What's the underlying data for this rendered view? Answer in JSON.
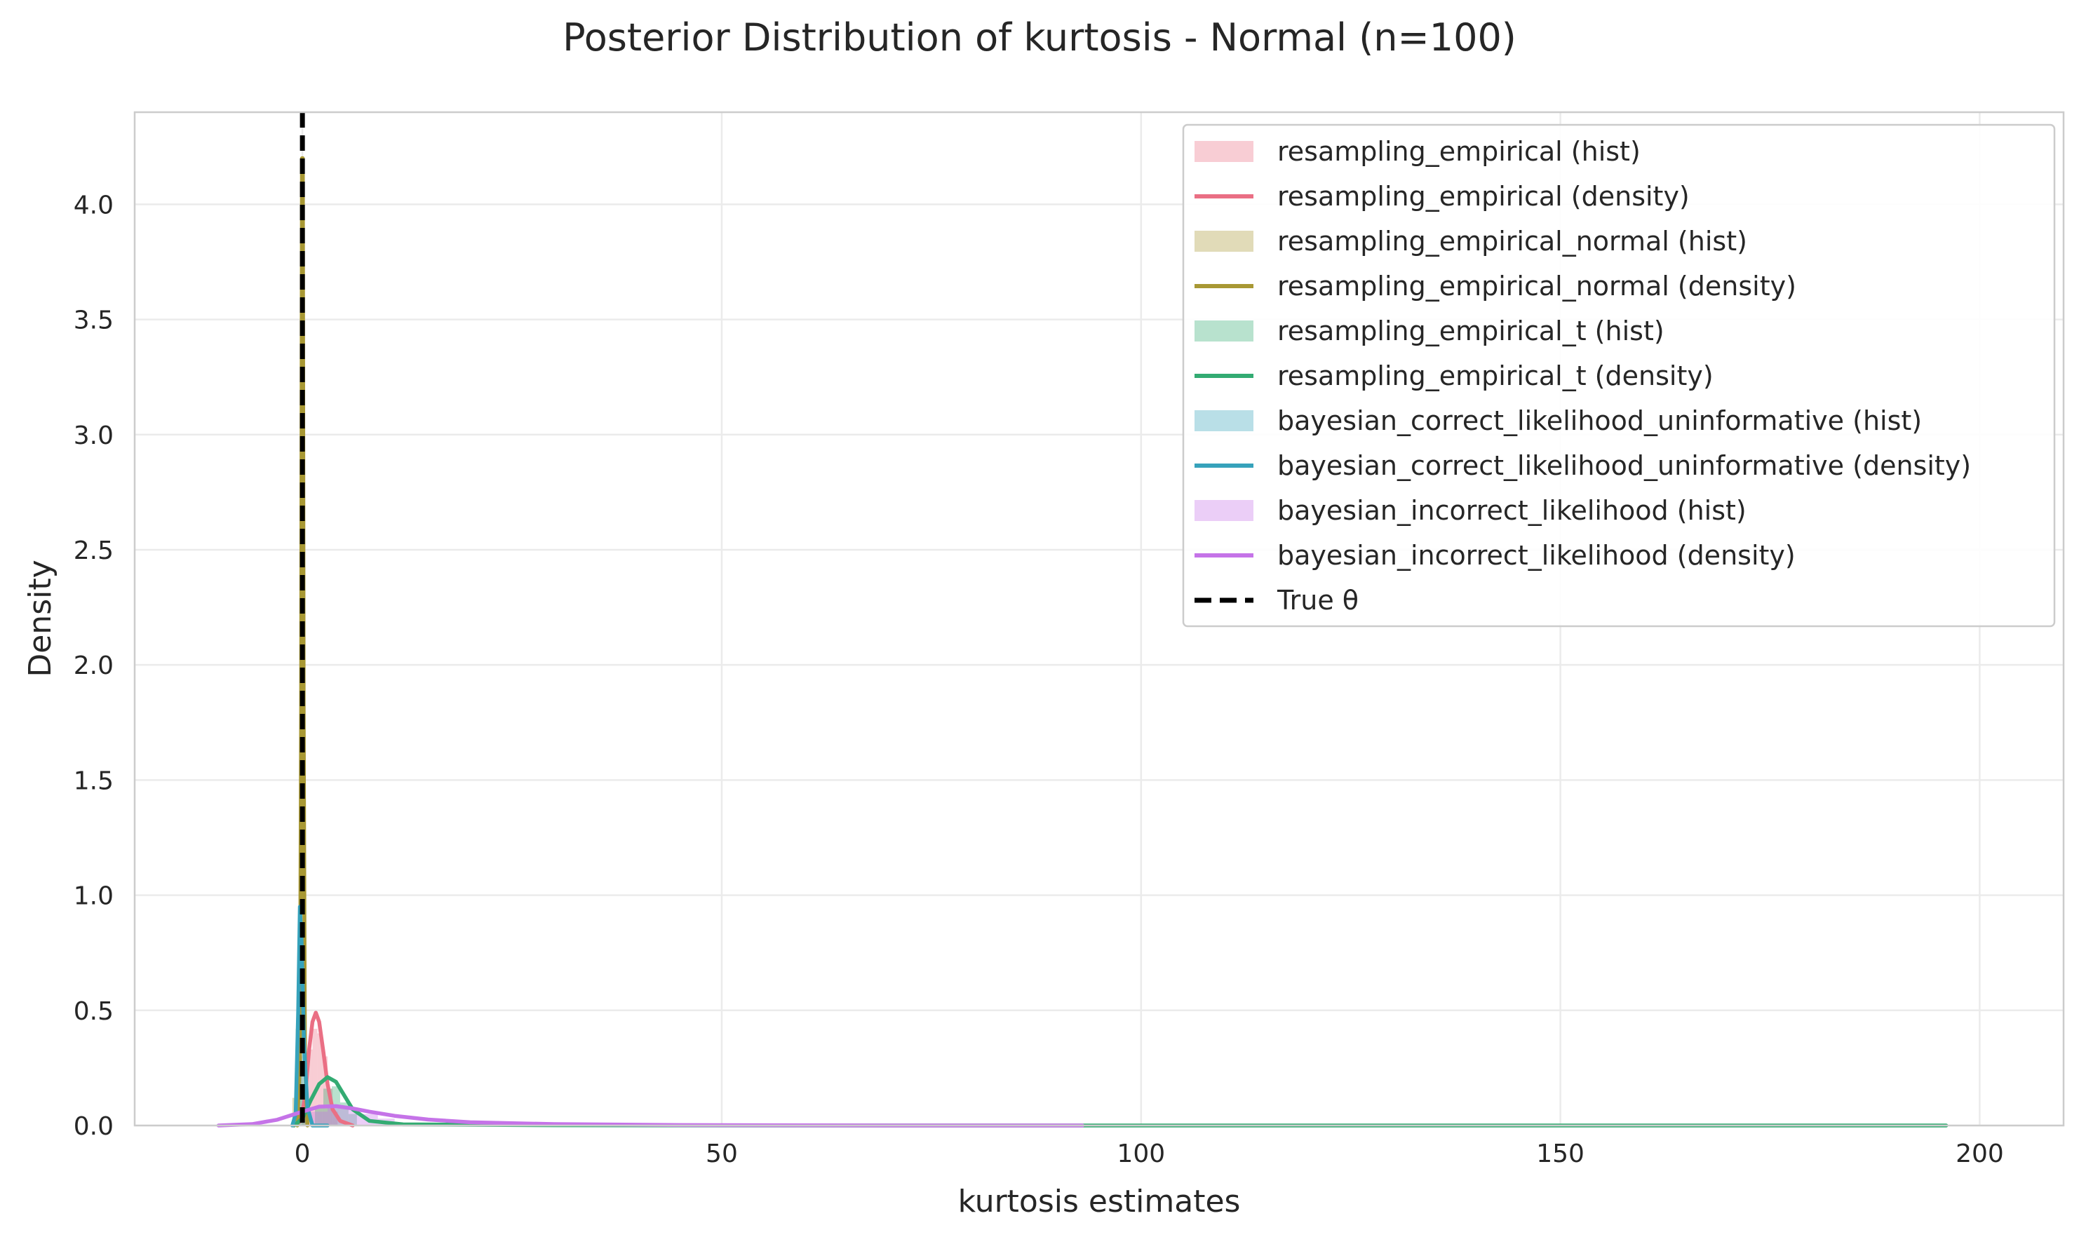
{
  "chart_data": {
    "type": "line",
    "title": "Posterior Distribution of kurtosis - Normal (n=100)",
    "xlabel": "kurtosis estimates",
    "ylabel": "Density",
    "xlim": [
      -20,
      210
    ],
    "ylim": [
      0,
      4.4
    ],
    "x_ticks": [
      0,
      50,
      100,
      150,
      200
    ],
    "y_ticks": [
      0.0,
      0.5,
      1.0,
      1.5,
      2.0,
      2.5,
      3.0,
      3.5,
      4.0
    ],
    "x_tick_labels": [
      "0",
      "50",
      "100",
      "150",
      "200"
    ],
    "y_tick_labels": [
      "0.0",
      "0.5",
      "1.0",
      "1.5",
      "2.0",
      "2.5",
      "3.0",
      "3.5",
      "4.0"
    ],
    "grid": true,
    "legend_position": "top-right",
    "true_theta": 0,
    "series": [
      {
        "name": "resampling_empirical",
        "hist_label": "resampling_empirical (hist)",
        "density_label": "resampling_empirical (density)",
        "color": "#ea6f84",
        "hist": [
          [
            0.0,
            0.08
          ],
          [
            0.6,
            0.33
          ],
          [
            1.2,
            0.42
          ],
          [
            1.8,
            0.4
          ],
          [
            2.4,
            0.3
          ],
          [
            3.0,
            0.16
          ],
          [
            3.6,
            0.06
          ]
        ],
        "density": [
          [
            -1.0,
            0.0
          ],
          [
            -0.2,
            0.02
          ],
          [
            0.3,
            0.12
          ],
          [
            0.8,
            0.33
          ],
          [
            1.2,
            0.45
          ],
          [
            1.6,
            0.49
          ],
          [
            2.0,
            0.45
          ],
          [
            2.5,
            0.32
          ],
          [
            3.0,
            0.18
          ],
          [
            3.6,
            0.07
          ],
          [
            4.5,
            0.02
          ],
          [
            6.0,
            0.0
          ]
        ]
      },
      {
        "name": "resampling_empirical_normal",
        "hist_label": "resampling_empirical_normal (hist)",
        "density_label": "resampling_empirical_normal (density)",
        "color": "#a89834",
        "hist": [
          [
            -1.2,
            0.12
          ],
          [
            -0.8,
            0.42
          ],
          [
            -0.4,
            0.3
          ],
          [
            0.0,
            0.18
          ]
        ],
        "density": [
          [
            -0.6,
            0.0
          ],
          [
            -0.3,
            0.3
          ],
          [
            -0.15,
            1.8
          ],
          [
            -0.05,
            4.2
          ],
          [
            0.05,
            4.2
          ],
          [
            0.15,
            1.8
          ],
          [
            0.3,
            0.3
          ],
          [
            0.6,
            0.0
          ]
        ]
      },
      {
        "name": "resampling_empirical_t",
        "hist_label": "resampling_empirical_t (hist)",
        "density_label": "resampling_empirical_t (density)",
        "color": "#33ab72",
        "hist": [
          [
            1.5,
            0.08
          ],
          [
            2.5,
            0.16
          ],
          [
            3.5,
            0.17
          ],
          [
            4.5,
            0.1
          ],
          [
            5.5,
            0.05
          ]
        ],
        "density": [
          [
            -1.0,
            0.0
          ],
          [
            0.0,
            0.03
          ],
          [
            1.0,
            0.11
          ],
          [
            2.0,
            0.18
          ],
          [
            3.0,
            0.21
          ],
          [
            4.0,
            0.19
          ],
          [
            5.0,
            0.13
          ],
          [
            6.0,
            0.07
          ],
          [
            8.0,
            0.02
          ],
          [
            12.0,
            0.005
          ],
          [
            30.0,
            0.001
          ],
          [
            60.0,
            0.0
          ],
          [
            196.0,
            0.0
          ]
        ]
      },
      {
        "name": "bayesian_correct_likelihood_uninformative",
        "hist_label": "bayesian_correct_likelihood_uninformative (hist)",
        "density_label": "bayesian_correct_likelihood_uninformative (density)",
        "color": "#36a2bb",
        "hist": [
          [
            -0.6,
            0.3
          ],
          [
            -0.3,
            0.8
          ],
          [
            0.0,
            0.5
          ],
          [
            0.3,
            0.15
          ]
        ],
        "density": [
          [
            -1.2,
            0.0
          ],
          [
            -0.8,
            0.05
          ],
          [
            -0.5,
            0.5
          ],
          [
            -0.3,
            0.95
          ],
          [
            -0.1,
            0.8
          ],
          [
            0.2,
            0.35
          ],
          [
            0.6,
            0.08
          ],
          [
            1.2,
            0.0
          ],
          [
            3.0,
            0.0
          ]
        ]
      },
      {
        "name": "bayesian_incorrect_likelihood",
        "hist_label": "bayesian_incorrect_likelihood (hist)",
        "density_label": "bayesian_incorrect_likelihood (density)",
        "color": "#c573e8",
        "hist": [
          [
            1.0,
            0.06
          ],
          [
            3.0,
            0.08
          ],
          [
            5.0,
            0.07
          ],
          [
            7.0,
            0.05
          ],
          [
            9.0,
            0.03
          ]
        ],
        "density": [
          [
            -10.0,
            0.0
          ],
          [
            -6.0,
            0.006
          ],
          [
            -3.0,
            0.025
          ],
          [
            0.0,
            0.06
          ],
          [
            2.0,
            0.082
          ],
          [
            4.0,
            0.084
          ],
          [
            6.0,
            0.074
          ],
          [
            8.0,
            0.06
          ],
          [
            11.0,
            0.042
          ],
          [
            15.0,
            0.026
          ],
          [
            20.0,
            0.014
          ],
          [
            30.0,
            0.006
          ],
          [
            45.0,
            0.002
          ],
          [
            70.0,
            0.0
          ],
          [
            93.0,
            0.0
          ]
        ]
      }
    ],
    "true_label": "True θ"
  }
}
